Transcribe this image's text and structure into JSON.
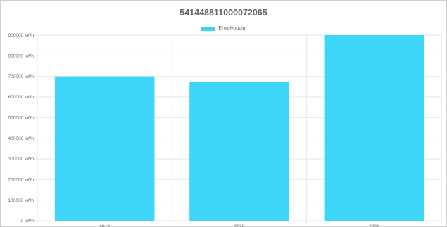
{
  "chart_data": {
    "type": "bar",
    "title": "541448811000072065",
    "categories": [
      "2019",
      "2020",
      "2021"
    ],
    "series": [
      {
        "name": "Enkelvoudig",
        "values": [
          700000,
          675000,
          900000
        ]
      }
    ],
    "ylim": [
      0,
      900000
    ],
    "y_tick_step": 100000,
    "y_tick_suffix": " kWh",
    "grid": true,
    "legend_position": "top",
    "bar_color": "#3dd5f8",
    "grid_color": "#e6e6e6",
    "text_color": "#666666"
  }
}
